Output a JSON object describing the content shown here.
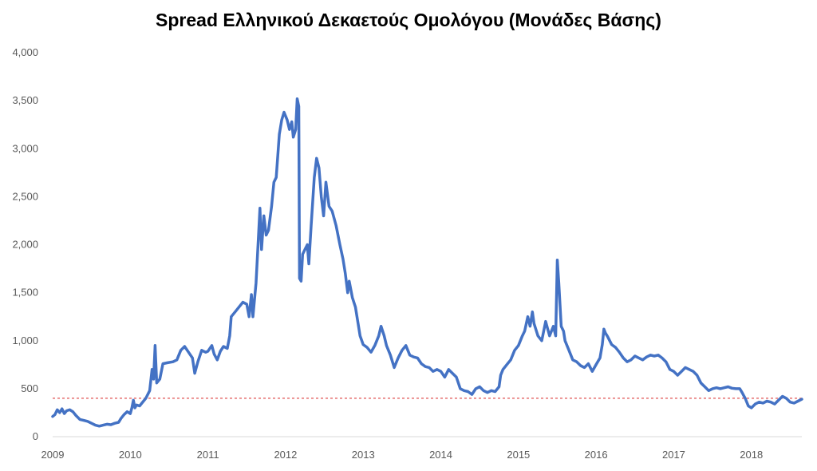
{
  "chart_data": {
    "type": "line",
    "title": "Spread Ελληνικού Δεκαετούς Ομολόγου (Μονάδες Βάσης)",
    "xlabel": "",
    "ylabel": "",
    "ylim": [
      0,
      4000
    ],
    "xlim": [
      2009.0,
      2018.65
    ],
    "yticks": [
      0,
      500,
      1000,
      1500,
      2000,
      2500,
      3000,
      3500,
      4000
    ],
    "ytick_labels": [
      "0",
      "500",
      "1,000",
      "1,500",
      "2,000",
      "2,500",
      "3,000",
      "3,500",
      "4,000"
    ],
    "xticks": [
      2009,
      2010,
      2011,
      2012,
      2013,
      2014,
      2015,
      2016,
      2017,
      2018
    ],
    "xtick_labels": [
      "2009",
      "2010",
      "2011",
      "2012",
      "2013",
      "2014",
      "2015",
      "2016",
      "2017",
      "2018"
    ],
    "grid": false,
    "line_color": "#4472C4",
    "reference_line": {
      "y": 400,
      "color": "#E05252",
      "style": "dashed"
    },
    "series": [
      {
        "name": "",
        "points": [
          [
            2009.0,
            210
          ],
          [
            2009.03,
            230
          ],
          [
            2009.06,
            280
          ],
          [
            2009.09,
            250
          ],
          [
            2009.12,
            290
          ],
          [
            2009.15,
            240
          ],
          [
            2009.18,
            270
          ],
          [
            2009.22,
            280
          ],
          [
            2009.26,
            260
          ],
          [
            2009.3,
            220
          ],
          [
            2009.35,
            180
          ],
          [
            2009.4,
            170
          ],
          [
            2009.45,
            160
          ],
          [
            2009.5,
            140
          ],
          [
            2009.55,
            120
          ],
          [
            2009.6,
            110
          ],
          [
            2009.65,
            120
          ],
          [
            2009.7,
            130
          ],
          [
            2009.75,
            125
          ],
          [
            2009.8,
            140
          ],
          [
            2009.85,
            150
          ],
          [
            2009.88,
            190
          ],
          [
            2009.92,
            230
          ],
          [
            2009.96,
            260
          ],
          [
            2010.0,
            240
          ],
          [
            2010.02,
            300
          ],
          [
            2010.04,
            380
          ],
          [
            2010.06,
            300
          ],
          [
            2010.08,
            330
          ],
          [
            2010.12,
            320
          ],
          [
            2010.15,
            350
          ],
          [
            2010.2,
            400
          ],
          [
            2010.25,
            480
          ],
          [
            2010.28,
            700
          ],
          [
            2010.3,
            600
          ],
          [
            2010.32,
            950
          ],
          [
            2010.34,
            560
          ],
          [
            2010.38,
            600
          ],
          [
            2010.42,
            760
          ],
          [
            2010.48,
            770
          ],
          [
            2010.55,
            780
          ],
          [
            2010.6,
            800
          ],
          [
            2010.65,
            900
          ],
          [
            2010.7,
            940
          ],
          [
            2010.75,
            880
          ],
          [
            2010.8,
            820
          ],
          [
            2010.83,
            660
          ],
          [
            2010.87,
            780
          ],
          [
            2010.92,
            900
          ],
          [
            2010.97,
            880
          ],
          [
            2011.0,
            890
          ],
          [
            2011.05,
            950
          ],
          [
            2011.08,
            860
          ],
          [
            2011.12,
            800
          ],
          [
            2011.16,
            890
          ],
          [
            2011.2,
            940
          ],
          [
            2011.25,
            920
          ],
          [
            2011.28,
            1050
          ],
          [
            2011.3,
            1250
          ],
          [
            2011.35,
            1300
          ],
          [
            2011.4,
            1350
          ],
          [
            2011.45,
            1400
          ],
          [
            2011.5,
            1380
          ],
          [
            2011.53,
            1250
          ],
          [
            2011.56,
            1480
          ],
          [
            2011.58,
            1250
          ],
          [
            2011.62,
            1600
          ],
          [
            2011.67,
            2380
          ],
          [
            2011.69,
            1950
          ],
          [
            2011.72,
            2300
          ],
          [
            2011.75,
            2100
          ],
          [
            2011.78,
            2150
          ],
          [
            2011.82,
            2400
          ],
          [
            2011.85,
            2650
          ],
          [
            2011.88,
            2700
          ],
          [
            2011.92,
            3150
          ],
          [
            2011.95,
            3300
          ],
          [
            2011.98,
            3380
          ],
          [
            2012.02,
            3300
          ],
          [
            2012.05,
            3200
          ],
          [
            2012.08,
            3280
          ],
          [
            2012.1,
            3120
          ],
          [
            2012.13,
            3200
          ],
          [
            2012.15,
            3520
          ],
          [
            2012.17,
            3440
          ],
          [
            2012.18,
            1650
          ],
          [
            2012.2,
            1620
          ],
          [
            2012.22,
            1900
          ],
          [
            2012.25,
            1950
          ],
          [
            2012.28,
            2000
          ],
          [
            2012.3,
            1800
          ],
          [
            2012.33,
            2200
          ],
          [
            2012.37,
            2700
          ],
          [
            2012.4,
            2900
          ],
          [
            2012.43,
            2800
          ],
          [
            2012.46,
            2500
          ],
          [
            2012.49,
            2300
          ],
          [
            2012.52,
            2650
          ],
          [
            2012.56,
            2400
          ],
          [
            2012.6,
            2350
          ],
          [
            2012.65,
            2200
          ],
          [
            2012.7,
            2000
          ],
          [
            2012.74,
            1850
          ],
          [
            2012.77,
            1700
          ],
          [
            2012.8,
            1500
          ],
          [
            2012.82,
            1620
          ],
          [
            2012.86,
            1450
          ],
          [
            2012.9,
            1350
          ],
          [
            2012.93,
            1200
          ],
          [
            2012.96,
            1050
          ],
          [
            2013.0,
            960
          ],
          [
            2013.05,
            930
          ],
          [
            2013.1,
            880
          ],
          [
            2013.15,
            950
          ],
          [
            2013.2,
            1050
          ],
          [
            2013.23,
            1150
          ],
          [
            2013.27,
            1050
          ],
          [
            2013.3,
            950
          ],
          [
            2013.35,
            850
          ],
          [
            2013.4,
            720
          ],
          [
            2013.45,
            820
          ],
          [
            2013.5,
            900
          ],
          [
            2013.55,
            950
          ],
          [
            2013.6,
            850
          ],
          [
            2013.65,
            830
          ],
          [
            2013.7,
            820
          ],
          [
            2013.75,
            760
          ],
          [
            2013.8,
            730
          ],
          [
            2013.85,
            720
          ],
          [
            2013.9,
            680
          ],
          [
            2013.95,
            700
          ],
          [
            2014.0,
            680
          ],
          [
            2014.05,
            620
          ],
          [
            2014.1,
            700
          ],
          [
            2014.15,
            660
          ],
          [
            2014.2,
            620
          ],
          [
            2014.25,
            500
          ],
          [
            2014.3,
            480
          ],
          [
            2014.35,
            470
          ],
          [
            2014.4,
            440
          ],
          [
            2014.45,
            500
          ],
          [
            2014.5,
            520
          ],
          [
            2014.55,
            480
          ],
          [
            2014.6,
            460
          ],
          [
            2014.65,
            480
          ],
          [
            2014.7,
            470
          ],
          [
            2014.75,
            520
          ],
          [
            2014.77,
            640
          ],
          [
            2014.8,
            700
          ],
          [
            2014.85,
            750
          ],
          [
            2014.9,
            800
          ],
          [
            2014.95,
            900
          ],
          [
            2015.0,
            950
          ],
          [
            2015.05,
            1050
          ],
          [
            2015.08,
            1100
          ],
          [
            2015.12,
            1250
          ],
          [
            2015.15,
            1150
          ],
          [
            2015.18,
            1300
          ],
          [
            2015.2,
            1180
          ],
          [
            2015.25,
            1050
          ],
          [
            2015.3,
            1000
          ],
          [
            2015.35,
            1200
          ],
          [
            2015.4,
            1050
          ],
          [
            2015.45,
            1150
          ],
          [
            2015.48,
            1050
          ],
          [
            2015.5,
            1840
          ],
          [
            2015.52,
            1600
          ],
          [
            2015.55,
            1150
          ],
          [
            2015.58,
            1100
          ],
          [
            2015.6,
            1000
          ],
          [
            2015.65,
            900
          ],
          [
            2015.7,
            800
          ],
          [
            2015.75,
            780
          ],
          [
            2015.8,
            740
          ],
          [
            2015.85,
            720
          ],
          [
            2015.9,
            760
          ],
          [
            2015.95,
            680
          ],
          [
            2016.0,
            750
          ],
          [
            2016.05,
            820
          ],
          [
            2016.08,
            960
          ],
          [
            2016.1,
            1120
          ],
          [
            2016.12,
            1080
          ],
          [
            2016.15,
            1040
          ],
          [
            2016.2,
            960
          ],
          [
            2016.25,
            930
          ],
          [
            2016.3,
            880
          ],
          [
            2016.35,
            820
          ],
          [
            2016.4,
            780
          ],
          [
            2016.45,
            800
          ],
          [
            2016.5,
            840
          ],
          [
            2016.55,
            820
          ],
          [
            2016.6,
            800
          ],
          [
            2016.65,
            830
          ],
          [
            2016.7,
            850
          ],
          [
            2016.75,
            840
          ],
          [
            2016.8,
            850
          ],
          [
            2016.85,
            820
          ],
          [
            2016.9,
            780
          ],
          [
            2016.95,
            700
          ],
          [
            2017.0,
            680
          ],
          [
            2017.05,
            640
          ],
          [
            2017.1,
            680
          ],
          [
            2017.15,
            720
          ],
          [
            2017.2,
            700
          ],
          [
            2017.25,
            680
          ],
          [
            2017.3,
            640
          ],
          [
            2017.35,
            560
          ],
          [
            2017.4,
            520
          ],
          [
            2017.45,
            480
          ],
          [
            2017.5,
            500
          ],
          [
            2017.55,
            510
          ],
          [
            2017.6,
            500
          ],
          [
            2017.65,
            510
          ],
          [
            2017.7,
            520
          ],
          [
            2017.75,
            505
          ],
          [
            2017.8,
            500
          ],
          [
            2017.85,
            500
          ],
          [
            2017.88,
            460
          ],
          [
            2017.92,
            400
          ],
          [
            2017.96,
            320
          ],
          [
            2018.0,
            300
          ],
          [
            2018.05,
            340
          ],
          [
            2018.1,
            360
          ],
          [
            2018.15,
            350
          ],
          [
            2018.2,
            370
          ],
          [
            2018.25,
            360
          ],
          [
            2018.3,
            340
          ],
          [
            2018.35,
            380
          ],
          [
            2018.4,
            420
          ],
          [
            2018.45,
            400
          ],
          [
            2018.5,
            360
          ],
          [
            2018.55,
            350
          ],
          [
            2018.6,
            370
          ],
          [
            2018.65,
            390
          ]
        ]
      }
    ]
  }
}
